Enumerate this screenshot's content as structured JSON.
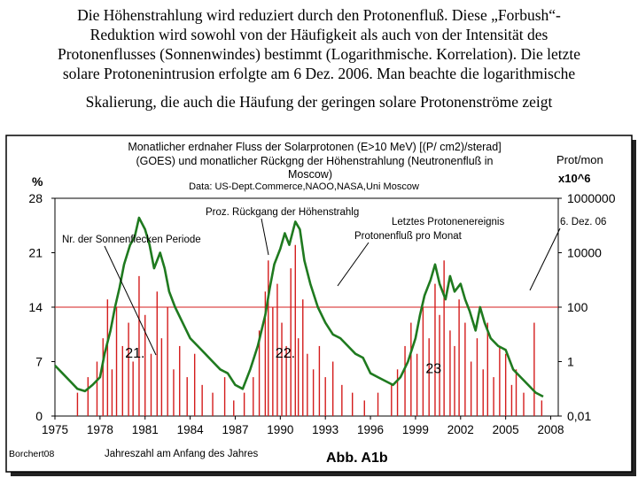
{
  "caption": {
    "lines": [
      "Die Höhenstrahlung wird reduziert durch den Protonenfluß. Diese „Forbush“-",
      "Reduktion wird sowohl von der Häufigkeit als auch von der Intensität des",
      "Protonenflusses (Sonnenwindes) bestimmt (Logarithmische. Korrelation). Die letzte",
      "solare Protonenintrusion erfolgte am 6 Dez. 2006. Man beachte die logarithmische",
      "Skalierung, die auch die Häufung der geringen solare Protonenströme zeigt"
    ]
  },
  "chart_data": {
    "type": "line",
    "title_lines": [
      "Monatlicher erdnaher Fluss der Solarprotonen (E>10 MeV) [(P/ cm2)/sterad]",
      "(GOES) und monatlicher Rückgng der Höhenstrahlung (Neutronenfluß in",
      "Moscow)"
    ],
    "subtitle": "Data: US-Dept.Commerce,NAOO,NASA,Uni Moscow",
    "xlabel": "Jahreszahl am Anfang des Jahres",
    "xlim": [
      1975,
      2008.5
    ],
    "x_ticks": [
      "1975",
      "1978",
      "1981",
      "1984",
      "1987",
      "1990",
      "1993",
      "1996",
      "1999",
      "2002",
      "2005",
      "2008"
    ],
    "left_axis": {
      "unit": "%",
      "ylim": [
        0,
        28
      ],
      "ticks": [
        "0",
        "7",
        "14",
        "21",
        "28"
      ]
    },
    "right_axis": {
      "unit_line1": "Prot/mon",
      "unit_line2": "x10^6",
      "ticks": [
        "0,01",
        "1",
        "100",
        "10000",
        "1000000"
      ]
    },
    "gridline_value": 14,
    "annotations": {
      "cosmic_ray": "Proz. Rückgang der Höhenstrahlg",
      "sunspot": "Nr. der Sonnenflecken Periode",
      "last_event": "Letztes Protonenereignis",
      "last_event_date": "6. Dez. 06",
      "proton_flux": "Protonenfluß pro Monat"
    },
    "cycles": [
      {
        "label": "21.",
        "year": 1980.5
      },
      {
        "label": "22.",
        "year": 1990.5
      },
      {
        "label": "23",
        "year": 2000.5
      }
    ],
    "footer_left": "Borchert08",
    "footer_right": "Abb. A1b",
    "series": [
      {
        "name": "Proz. Rückgang der Höhenstrahlg",
        "color": "#1f7a1f",
        "x": [
          1975,
          1975.5,
          1976,
          1976.5,
          1977,
          1977.5,
          1978,
          1978.3,
          1978.7,
          1979,
          1979.3,
          1979.6,
          1980,
          1980.3,
          1980.6,
          1981,
          1981.3,
          1981.6,
          1982,
          1982.3,
          1982.6,
          1983,
          1983.5,
          1984,
          1984.5,
          1985,
          1985.5,
          1986,
          1986.5,
          1987,
          1987.5,
          1988,
          1988.5,
          1989,
          1989.3,
          1989.6,
          1990,
          1990.3,
          1990.6,
          1991,
          1991.3,
          1991.6,
          1992,
          1992.5,
          1993,
          1993.5,
          1994,
          1994.5,
          1995,
          1995.5,
          1996,
          1996.5,
          1997,
          1997.5,
          1998,
          1998.5,
          1999,
          1999.3,
          1999.6,
          2000,
          2000.3,
          2000.6,
          2001,
          2001.3,
          2001.6,
          2002,
          2002.3,
          2002.6,
          2003,
          2003.3,
          2003.6,
          2004,
          2004.5,
          2005,
          2005.5,
          2006,
          2006.5,
          2007,
          2007.5
        ],
        "values": [
          6.5,
          5.5,
          4.5,
          3.5,
          3.2,
          4,
          5,
          8,
          11,
          14,
          16.5,
          19.5,
          22,
          23,
          25.5,
          24,
          22,
          19,
          21,
          19,
          16,
          14,
          12,
          10,
          9,
          8,
          7,
          6,
          5.5,
          4,
          3.5,
          6,
          9,
          13,
          16.5,
          19.5,
          21.5,
          23.5,
          22,
          25,
          24,
          20,
          17,
          14,
          12,
          10.5,
          10,
          9,
          8,
          7.5,
          5.5,
          5,
          4.5,
          4,
          5,
          7,
          10,
          13,
          15.5,
          17.5,
          19.5,
          17,
          15,
          18,
          16,
          17,
          15,
          13.5,
          11,
          14,
          12,
          10,
          9,
          8.5,
          6,
          5,
          4,
          3,
          2.5
        ]
      },
      {
        "name": "Protonenfluß pro Monat",
        "color": "#d41c1c",
        "x": [
          1976.5,
          1977.2,
          1977.8,
          1978.2,
          1978.5,
          1978.8,
          1979.1,
          1979.5,
          1979.9,
          1980.2,
          1980.6,
          1981.0,
          1981.4,
          1981.8,
          1982.1,
          1982.5,
          1982.9,
          1983.3,
          1983.8,
          1984.3,
          1984.8,
          1985.5,
          1986.3,
          1986.9,
          1987.6,
          1988.2,
          1988.6,
          1989.0,
          1989.2,
          1989.5,
          1989.8,
          1990.1,
          1990.4,
          1990.7,
          1991.0,
          1991.2,
          1991.5,
          1991.8,
          1992.2,
          1992.6,
          1993.0,
          1993.5,
          1994.1,
          1994.8,
          1995.6,
          1996.5,
          1997.4,
          1997.8,
          1998.3,
          1998.7,
          1999.1,
          1999.5,
          1999.9,
          2000.3,
          2000.6,
          2000.9,
          2001.3,
          2001.6,
          2001.9,
          2002.3,
          2002.7,
          2003.1,
          2003.5,
          2003.8,
          2004.2,
          2004.6,
          2005.0,
          2005.4,
          2005.7,
          2006.2,
          2006.9,
          2007.4
        ],
        "values": [
          3,
          5,
          7,
          10,
          15,
          6,
          14,
          9,
          12,
          7,
          18,
          13,
          8,
          16,
          10,
          14,
          6,
          9,
          5,
          8,
          4,
          3,
          5,
          2,
          3,
          5,
          11,
          16,
          20,
          14,
          17,
          12,
          9,
          19,
          22,
          10,
          15,
          8,
          6,
          9,
          5,
          7,
          4,
          3,
          2,
          3,
          4,
          6,
          9,
          12,
          8,
          14,
          10,
          17,
          13,
          20,
          11,
          9,
          15,
          12,
          7,
          10,
          6,
          12,
          5,
          9,
          8,
          4,
          6,
          3,
          12,
          2
        ]
      }
    ]
  }
}
